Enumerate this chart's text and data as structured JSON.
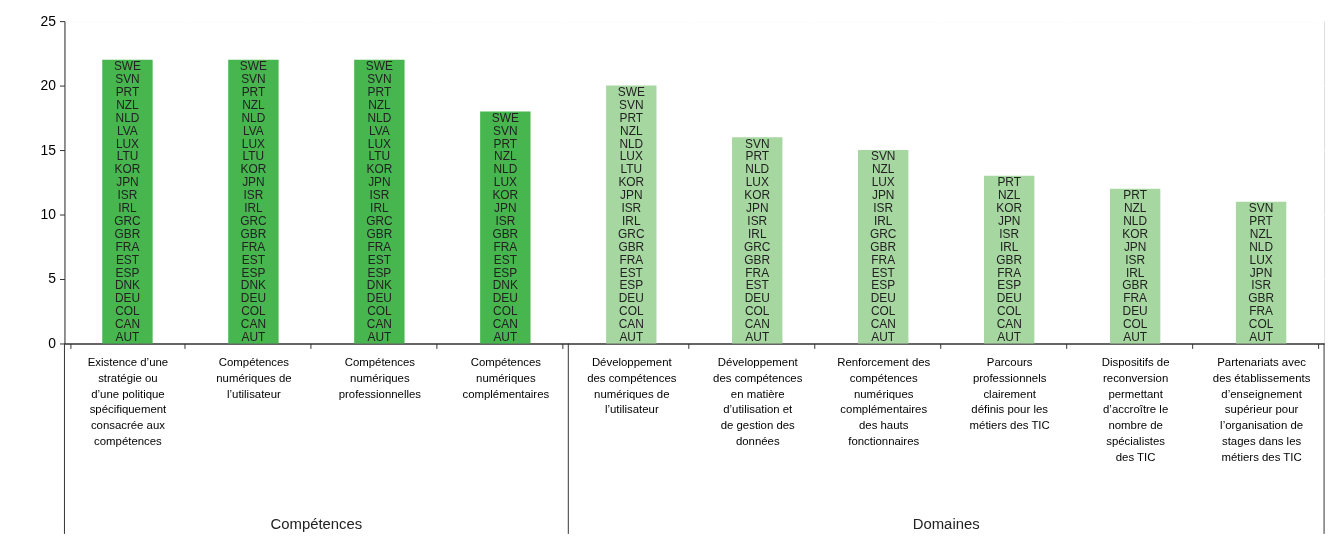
{
  "chart_data": {
    "type": "bar",
    "categories": [
      "Existence d’une\nstratégie ou\nd’une politique\nspécifiquement\nconsacrée aux\ncompétences",
      "Compétences\nnumériques de\nl’utilisateur",
      "Compétences\nnumériques\nprofessionnelles",
      "Compétences\nnumériques\ncomplémentaires",
      "Développement\ndes compétences\nnumériques de\nl’utilisateur",
      "Développement\ndes compétences\nen matière\nd’utilisation et\nde gestion des\ndonnées",
      "Renforcement des\ncompétences\nnumériques\ncomplémentaires\ndes hauts\nfonctionnaires",
      "Parcours\nprofessionnels\nclairement\ndéfinis pour les\nmétiers des TIC",
      "Dispositifs de\nreconversion\npermettant\nd’accroître le\nnombre de\nspécialistes\ndes TIC",
      "Partenariats avec\ndes établissements\nd’enseignement\nsupérieur pour\nl’organisation de\nstages dans les\nmétiers des TIC"
    ],
    "values": [
      22,
      22,
      22,
      18,
      20,
      16,
      15,
      13,
      12,
      11
    ],
    "colors": [
      "#47b64f",
      "#47b64f",
      "#47b64f",
      "#47b64f",
      "#a6d7a0",
      "#a6d7a0",
      "#a6d7a0",
      "#a6d7a0",
      "#a6d7a0",
      "#a6d7a0"
    ],
    "ylim": [
      0,
      25
    ],
    "yticks": [
      0,
      5,
      10,
      15,
      20,
      25
    ],
    "grid": true,
    "annotations": [
      "SWE",
      "SVN",
      "PRT",
      "NZL",
      "NLD",
      "LVA",
      "LUX",
      "LTU",
      "KOR",
      "JPN",
      "ISR",
      "IRL",
      "GRC",
      "GBR",
      "FRA",
      "EST",
      "ESP",
      "DNK",
      "DEU",
      "COL",
      "CAN",
      "AUT",
      "SWE",
      "SVN",
      "PRT",
      "NZL",
      "NLD",
      "LVA",
      "LUX",
      "LTU",
      "KOR",
      "JPN",
      "ISR",
      "IRL",
      "GRC",
      "GBR",
      "FRA",
      "EST",
      "ESP",
      "DNK",
      "DEU",
      "COL",
      "CAN",
      "AUT",
      "SWE",
      "SVN",
      "PRT",
      "NZL",
      "NLD",
      "LVA",
      "LUX",
      "LTU",
      "KOR",
      "JPN",
      "ISR",
      "IRL",
      "GRC",
      "GBR",
      "FRA",
      "EST",
      "ESP",
      "DNK",
      "DEU",
      "COL",
      "CAN",
      "AUT",
      "SWE",
      "SVN",
      "PRT",
      "NZL",
      "NLD",
      "LUX",
      "KOR",
      "JPN",
      "ISR",
      "GBR",
      "FRA",
      "EST",
      "ESP",
      "DNK",
      "DEU",
      "COL",
      "CAN",
      "AUT",
      "SWE",
      "SVN",
      "PRT",
      "NZL",
      "NLD",
      "LUX",
      "LTU",
      "KOR",
      "JPN",
      "ISR",
      "IRL",
      "GRC",
      "GBR",
      "FRA",
      "EST",
      "ESP",
      "DEU",
      "COL",
      "CAN",
      "AUT",
      "SVN",
      "PRT",
      "NLD",
      "LUX",
      "KOR",
      "JPN",
      "ISR",
      "IRL",
      "GRC",
      "GBR",
      "FRA",
      "EST",
      "DEU",
      "COL",
      "CAN",
      "AUT",
      "SVN",
      "NZL",
      "LUX",
      "JPN",
      "ISR",
      "IRL",
      "GRC",
      "GBR",
      "FRA",
      "EST",
      "ESP",
      "DEU",
      "COL",
      "CAN",
      "AUT",
      "PRT",
      "NZL",
      "KOR",
      "JPN",
      "ISR",
      "IRL",
      "GBR",
      "FRA",
      "ESP",
      "DEU",
      "COL",
      "CAN",
      "AUT",
      "PRT",
      "NZL",
      "NLD",
      "KOR",
      "JPN",
      "ISR",
      "IRL",
      "GBR",
      "FRA",
      "DEU",
      "COL",
      "AUT",
      "SVN",
      "PRT",
      "NZL",
      "NLD",
      "LUX",
      "JPN",
      "ISR",
      "GBR",
      "FRA",
      "COL",
      "AUT",
      "Compétences",
      "Domaines"
    ]
  }
}
